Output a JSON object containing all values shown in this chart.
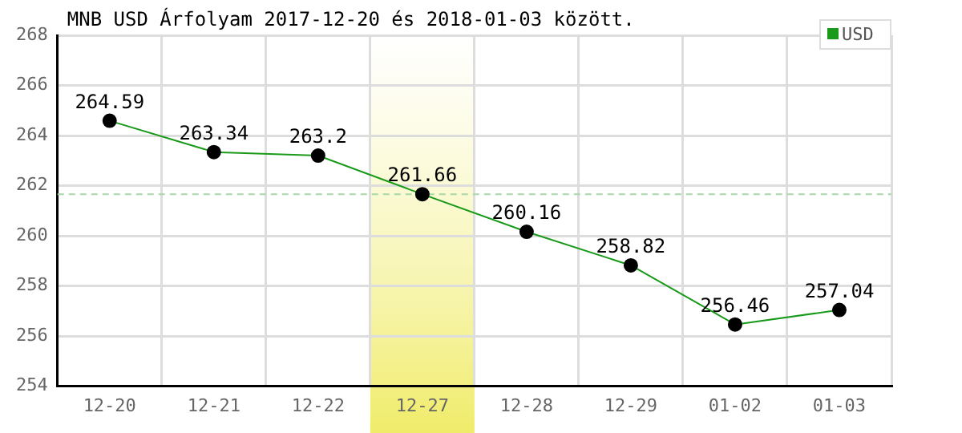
{
  "chart_data": {
    "type": "line",
    "title": "MNB USD Árfolyam 2017-12-20 és 2018-01-03 között.",
    "categories": [
      "12-20",
      "12-21",
      "12-22",
      "12-27",
      "12-28",
      "12-29",
      "01-02",
      "01-03"
    ],
    "series": [
      {
        "name": "USD",
        "color": "#1a9a1a",
        "values": [
          264.59,
          263.34,
          263.2,
          261.66,
          260.16,
          258.82,
          256.46,
          257.04
        ]
      }
    ],
    "ylim": [
      254,
      268
    ],
    "yticks": [
      254,
      256,
      258,
      260,
      262,
      264,
      266,
      268
    ],
    "grid": true,
    "legend": "top right",
    "marker": "circle",
    "data_labels": true,
    "ref_lines": [
      {
        "axis": "y",
        "value": 261.66,
        "color": "#a8d8a8",
        "line_style": "dashed"
      }
    ],
    "bands": [
      {
        "axis": "x",
        "from": "12-27",
        "to": "12-27",
        "color": "#f0ec6a"
      }
    ]
  }
}
